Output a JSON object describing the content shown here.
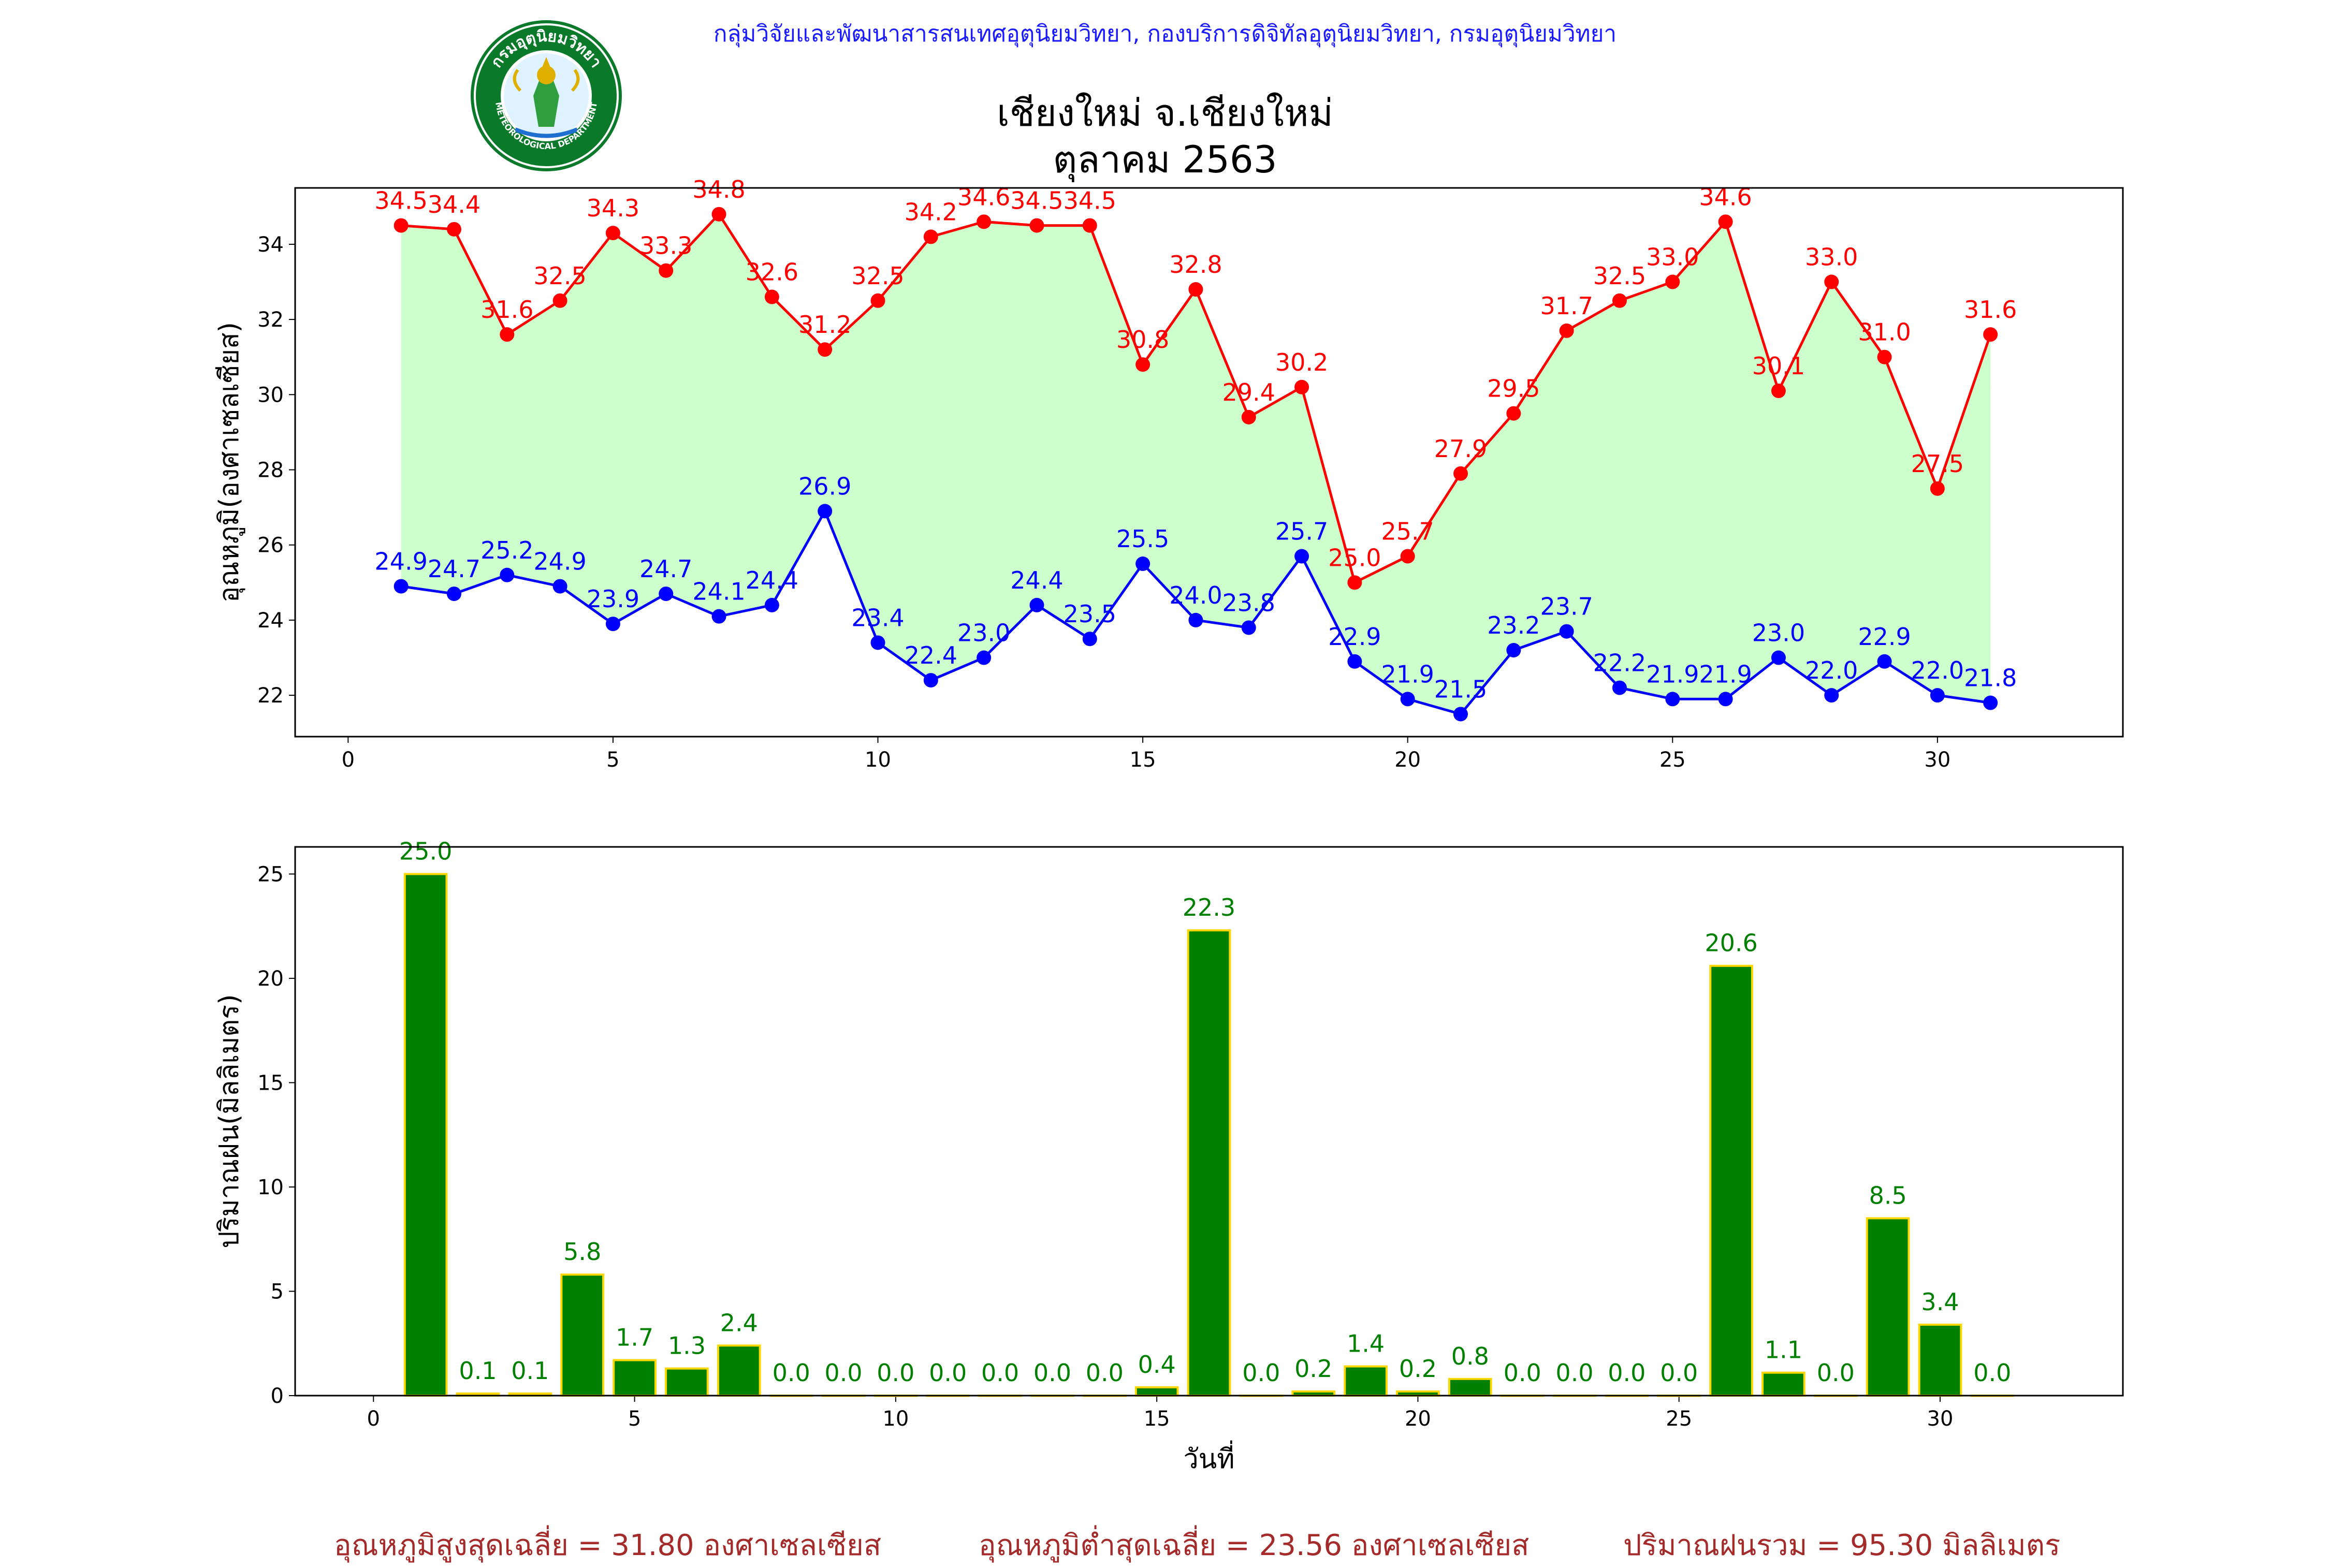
{
  "header": {
    "credit": "กลุ่มวิจัยและพัฒนาสารสนเทศอุตุนิยมวิทยา, กองบริการดิจิทัลอุตุนิยมวิทยา, กรมอุตุนิยมวิทยา",
    "station": "เชียงใหม่ จ.เชียงใหม่",
    "period": "ตุลาคม 2563"
  },
  "logo": {
    "ring_text": "กรมอุตุนิยมวิทยา",
    "ring_text_en": "METEOROLOGICAL DEPARTMENT"
  },
  "chart_data": [
    {
      "type": "line",
      "ylabel": "อุณหภูมิ(องศาเซลเซียส)",
      "xlim": [
        -1,
        33.5
      ],
      "ylim": [
        20.9,
        35.5
      ],
      "xticks": [
        0,
        5,
        10,
        15,
        20,
        25,
        30
      ],
      "yticks": [
        22,
        24,
        26,
        28,
        30,
        32,
        34
      ],
      "x": [
        1,
        2,
        3,
        4,
        5,
        6,
        7,
        8,
        9,
        10,
        11,
        12,
        13,
        14,
        15,
        16,
        17,
        18,
        19,
        20,
        21,
        22,
        23,
        24,
        25,
        26,
        27,
        28,
        29,
        30,
        31
      ],
      "fill_between": {
        "color": "#ccffcc"
      },
      "series": [
        {
          "role": "max",
          "color": "#ff0000",
          "values": [
            34.5,
            34.4,
            31.6,
            32.5,
            34.3,
            33.3,
            34.8,
            32.6,
            31.2,
            32.5,
            34.2,
            34.6,
            34.5,
            34.5,
            30.8,
            32.8,
            29.4,
            30.2,
            25.0,
            25.7,
            27.9,
            29.5,
            31.7,
            32.5,
            33.0,
            34.6,
            30.1,
            33.0,
            31.0,
            27.5,
            31.6
          ]
        },
        {
          "role": "min",
          "color": "#0000ff",
          "values": [
            24.9,
            24.7,
            25.2,
            24.9,
            23.9,
            24.7,
            24.1,
            24.4,
            26.9,
            23.4,
            22.4,
            23.0,
            24.4,
            23.5,
            25.5,
            24.0,
            23.8,
            25.7,
            22.9,
            21.9,
            21.5,
            23.2,
            23.7,
            22.2,
            21.9,
            21.9,
            23.0,
            22.0,
            22.9,
            22.0,
            21.8
          ]
        }
      ]
    },
    {
      "type": "bar",
      "ylabel": "ปริมาณฝน(มิลลิเมตร)",
      "xlabel": "วันที่",
      "xlim": [
        -1.5,
        33.5
      ],
      "ylim": [
        0,
        26.3
      ],
      "xticks": [
        0,
        5,
        10,
        15,
        20,
        25,
        30
      ],
      "yticks": [
        0,
        5,
        10,
        15,
        20,
        25
      ],
      "bar_color": "#008000",
      "edge_color": "#ffd700",
      "label_color": "#008000",
      "x": [
        1,
        2,
        3,
        4,
        5,
        6,
        7,
        8,
        9,
        10,
        11,
        12,
        13,
        14,
        15,
        16,
        17,
        18,
        19,
        20,
        21,
        22,
        23,
        24,
        25,
        26,
        27,
        28,
        29,
        30,
        31
      ],
      "values": [
        25.0,
        0.1,
        0.1,
        5.8,
        1.7,
        1.3,
        2.4,
        0.0,
        0.0,
        0.0,
        0.0,
        0.0,
        0.0,
        0.0,
        0.4,
        22.3,
        0.0,
        0.2,
        1.4,
        0.2,
        0.8,
        0.0,
        0.0,
        0.0,
        0.0,
        20.6,
        1.1,
        0.0,
        8.5,
        3.4,
        0.0
      ]
    }
  ],
  "summary": {
    "avg_max": "อุณหภูมิสูงสุดเฉลี่ย = 31.80 องศาเซลเซียส",
    "avg_min": "อุณหภูมิต่ำสุดเฉลี่ย = 23.56 องศาเซลเซียส",
    "rain_total": "ปริมาณฝนรวม = 95.30 มิลลิเมตร",
    "color": "#a52a2a"
  }
}
